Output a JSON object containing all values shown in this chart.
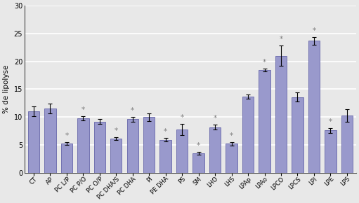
{
  "categories": [
    "CT",
    "AP",
    "PC L/P",
    "PC P/O",
    "PC O/P",
    "PC DHA/S",
    "PC DHA",
    "PI",
    "PE DHA",
    "PS",
    "SM",
    "LHO",
    "LHS",
    "LPAp",
    "LPAo",
    "LPCO",
    "LPCS",
    "LPI",
    "LPE",
    "LPS"
  ],
  "values": [
    11.0,
    11.5,
    5.2,
    9.8,
    9.2,
    6.1,
    9.6,
    10.0,
    5.9,
    7.8,
    3.5,
    8.2,
    5.2,
    13.7,
    18.4,
    21.0,
    13.6,
    23.7,
    7.6,
    10.3
  ],
  "errors": [
    0.9,
    0.9,
    0.25,
    0.35,
    0.4,
    0.25,
    0.4,
    0.7,
    0.3,
    1.0,
    0.2,
    0.45,
    0.3,
    0.4,
    0.25,
    1.8,
    0.85,
    0.7,
    0.45,
    1.1
  ],
  "significant": [
    false,
    false,
    true,
    true,
    false,
    true,
    true,
    false,
    true,
    true,
    true,
    true,
    true,
    false,
    true,
    true,
    false,
    true,
    true,
    false
  ],
  "bar_color": "#9999cc",
  "bar_edge_color": "#6666aa",
  "ylabel": "% de lipolyse",
  "ylim": [
    0,
    30
  ],
  "yticks": [
    0,
    5,
    10,
    15,
    20,
    25,
    30
  ],
  "background_color": "#e8e8e8",
  "plot_bg_color": "#e8e8e8",
  "grid_color": "#ffffff",
  "star_color": "#808080",
  "star_fontsize": 7.5,
  "xlabel_fontsize": 6.0,
  "ylabel_fontsize": 7.5,
  "ytick_fontsize": 7.0
}
